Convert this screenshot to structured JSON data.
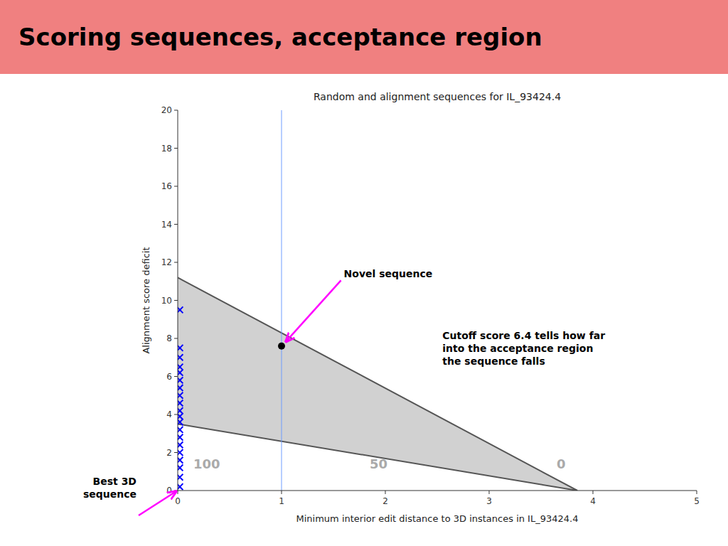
{
  "chart_data": {
    "type": "scatter",
    "header": {
      "text": "Scoring sequences, acceptance region",
      "color": "#F08080"
    },
    "title": "Random and alignment sequences for IL_93424.4",
    "x_label": "Minimum interior edit distance to 3D instances in IL_93424.4",
    "y_label": "Alignment score deficit",
    "xlim": [
      0,
      5
    ],
    "ylim": [
      0,
      20
    ],
    "xticks": [
      0,
      1,
      2,
      3,
      4,
      5
    ],
    "yticks": [
      0,
      2,
      4,
      6,
      8,
      10,
      12,
      14,
      16,
      18,
      20
    ],
    "grid": false,
    "series": [
      {
        "type": "area",
        "x": [
          0,
          3.85
        ],
        "values": [
          11.2,
          0
        ],
        "lower": [
          3.5,
          0
        ],
        "color": "#cccccc"
      },
      {
        "type": "line",
        "x": [
          0,
          3.85
        ],
        "values": [
          11.2,
          0
        ],
        "color": "#555555"
      },
      {
        "type": "line",
        "x": [
          0,
          3.85
        ],
        "values": [
          3.5,
          0
        ],
        "color": "#555555"
      },
      {
        "type": "scatter",
        "marker": "x",
        "color": "blue",
        "x": [
          0.02,
          0.02,
          0.02,
          0.02,
          0.02,
          0.02,
          0.02,
          0.02,
          0.02,
          0.02,
          0.02,
          0.02,
          0.02,
          0.02,
          0.02,
          0.02,
          0.02,
          0.02,
          0.02,
          0.02
        ],
        "values": [
          9.5,
          7.5,
          7.0,
          6.5,
          6.2,
          5.8,
          5.4,
          5.0,
          4.6,
          4.2,
          3.9,
          3.6,
          3.2,
          2.8,
          2.4,
          2.0,
          1.6,
          1.2,
          0.7,
          0.2
        ]
      },
      {
        "type": "vline",
        "x": [
          1.0
        ],
        "color": "#6699ff"
      },
      {
        "type": "scatter",
        "marker": "circle",
        "color": "#000000",
        "x": [
          1.0
        ],
        "values": [
          7.6
        ]
      }
    ],
    "annotations": [
      {
        "text": "Novel sequence",
        "x": 1.6,
        "y": 11.2,
        "arrow_to": [
          1.0,
          7.6
        ],
        "arrow_color": "#ff00ff"
      },
      {
        "text": "Cutoff score 6.4 tells how far\ninto the acceptance region\nthe sequence falls",
        "x": 2.55,
        "y": 8.5
      },
      {
        "text": "100",
        "x": 0.15,
        "y": 1.1,
        "color": "#aaaaaa"
      },
      {
        "text": "50",
        "x": 1.85,
        "y": 1.1,
        "color": "#aaaaaa"
      },
      {
        "text": "0",
        "x": 3.65,
        "y": 1.1,
        "color": "#aaaaaa"
      },
      {
        "text": "Best 3D\nsequence",
        "arrow_to": [
          0,
          0
        ],
        "arrow_color": "#ff00ff"
      }
    ]
  }
}
